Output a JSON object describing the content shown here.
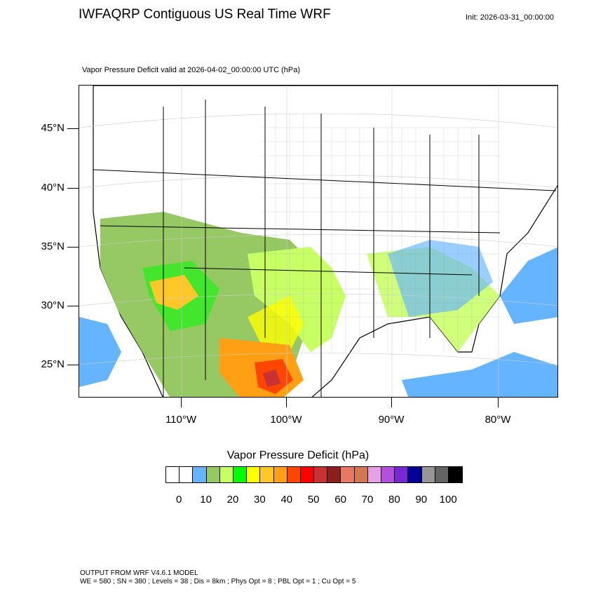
{
  "title": "IWFAQRP Contiguous US Real Time WRF",
  "init_label": "Init: 2026-03-31_00:00:00",
  "subtitle": "Vapor Pressure Deficit valid at 2026-04-02_00:00:00 UTC   (hPa)",
  "lat_labels": [
    "45°N",
    "40°N",
    "35°N",
    "30°N",
    "25°N"
  ],
  "lon_labels": [
    "110°W",
    "100°W",
    "90°W",
    "80°W"
  ],
  "colorbar": {
    "title": "Vapor Pressure Deficit  (hPa)",
    "colors": [
      "#ffffff",
      "#ffffff",
      "#64b4ff",
      "#96c864",
      "#c8ff64",
      "#00ff00",
      "#ffff00",
      "#ffc828",
      "#ffa014",
      "#ff4600",
      "#ff0000",
      "#c83232",
      "#8c1e1e",
      "#e67864",
      "#d27850",
      "#e6a0e6",
      "#b450dc",
      "#7828d2",
      "#000096",
      "#969696",
      "#646464",
      "#000000"
    ],
    "labels": [
      "0",
      "10",
      "20",
      "30",
      "40",
      "50",
      "60",
      "70",
      "80",
      "90",
      "100"
    ]
  },
  "footer": {
    "line1": "OUTPUT FROM WRF V4.6.1 MODEL",
    "line2": "WE = 580 ; SN = 380 ; Levels = 38 ; Dis = 8km ; Phys Opt = 8 ; PBL Opt = 1 ; Cu Opt = 5"
  }
}
